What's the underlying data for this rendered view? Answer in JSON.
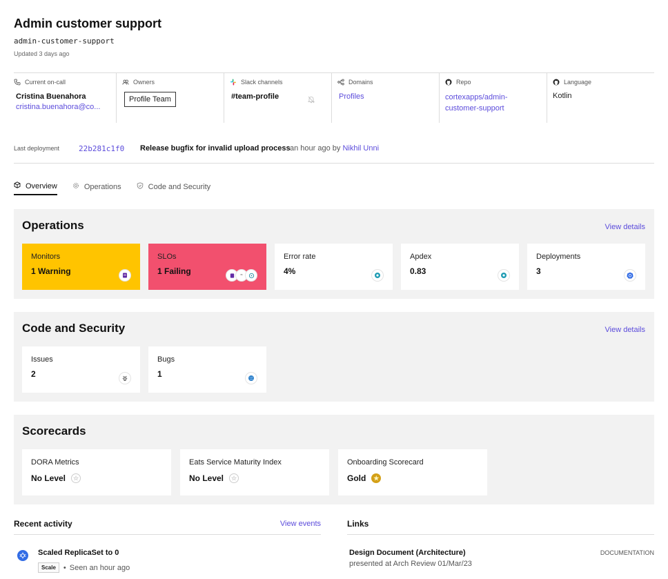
{
  "header": {
    "title": "Admin customer support",
    "slug": "admin-customer-support",
    "updated": "Updated 3 days ago"
  },
  "meta": {
    "oncall": {
      "label": "Current on-call",
      "name": "Cristina Buenahora",
      "email": "cristina.buenahora@co..."
    },
    "owners": {
      "label": "Owners",
      "team": "Profile Team"
    },
    "slack": {
      "label": "Slack channels",
      "channel": "#team-profile"
    },
    "domains": {
      "label": "Domains",
      "value": "Profiles"
    },
    "repo": {
      "label": "Repo",
      "line1": "cortexapps/admin-",
      "line2": "customer-support"
    },
    "language": {
      "label": "Language",
      "value": "Kotlin"
    }
  },
  "deployment": {
    "label": "Last deployment",
    "sha": "22b281c1f0",
    "message": "Release bugfix for invalid upload process",
    "when": "an hour ago by",
    "author": "Nikhil Unni"
  },
  "tabs": [
    {
      "label": "Overview",
      "active": true
    },
    {
      "label": "Operations",
      "active": false
    },
    {
      "label": "Code and Security",
      "active": false
    }
  ],
  "operations": {
    "title": "Operations",
    "view_details": "View details",
    "cards": [
      {
        "label": "Monitors",
        "value": "1 Warning",
        "status": "warning"
      },
      {
        "label": "SLOs",
        "value": "1 Failing",
        "status": "failing"
      },
      {
        "label": "Error rate",
        "value": "4%",
        "status": "normal"
      },
      {
        "label": "Apdex",
        "value": "0.83",
        "status": "normal"
      },
      {
        "label": "Deployments",
        "value": "3",
        "status": "normal"
      }
    ]
  },
  "code_security": {
    "title": "Code and Security",
    "view_details": "View details",
    "cards": [
      {
        "label": "Issues",
        "value": "2"
      },
      {
        "label": "Bugs",
        "value": "1"
      }
    ]
  },
  "scorecards": {
    "title": "Scorecards",
    "cards": [
      {
        "label": "DORA Metrics",
        "value": "No Level",
        "level": "none"
      },
      {
        "label": "Eats Service Maturity Index",
        "value": "No Level",
        "level": "none"
      },
      {
        "label": "Onboarding Scorecard",
        "value": "Gold",
        "level": "gold"
      }
    ]
  },
  "recent_activity": {
    "title": "Recent activity",
    "view_events": "View events",
    "items": [
      {
        "title": "Scaled ReplicaSet to 0",
        "tag": "Scale",
        "time": "Seen an hour ago",
        "icon": "kubernetes-icon"
      }
    ]
  },
  "links": {
    "title": "Links",
    "items": [
      {
        "title": "Design Document (Architecture)",
        "description": "presented at Arch Review 01/Mar/23",
        "type": "DOCUMENTATION"
      }
    ]
  },
  "colors": {
    "accent": "#5b4bdb",
    "warning": "#ffc400",
    "failing": "#f2506e",
    "panel_bg": "#f2f2f2"
  }
}
